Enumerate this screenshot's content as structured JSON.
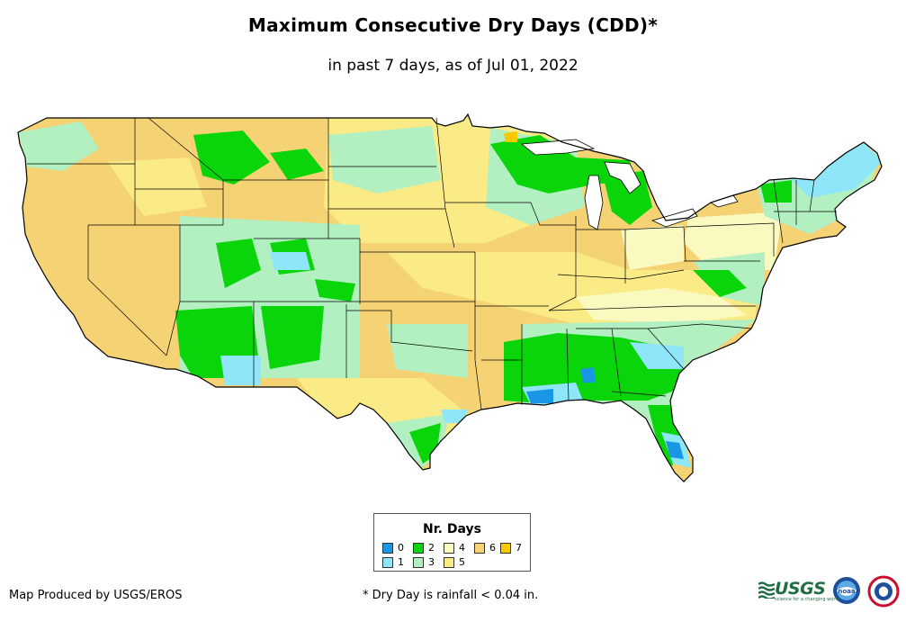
{
  "title": "Maximum Consecutive Dry Days (CDD)*",
  "subtitle": "in past 7 days, as of Jul 01, 2022",
  "legend": {
    "title": "Nr. Days",
    "items": [
      {
        "label": "0",
        "color": "#1996e6"
      },
      {
        "label": "1",
        "color": "#8ee6f8"
      },
      {
        "label": "2",
        "color": "#0ad40a"
      },
      {
        "label": "3",
        "color": "#b2f0c2"
      },
      {
        "label": "4",
        "color": "#fafac0"
      },
      {
        "label": "5",
        "color": "#faeb87"
      },
      {
        "label": "6",
        "color": "#f5d273"
      },
      {
        "label": "7",
        "color": "#f8c800"
      }
    ]
  },
  "credit": "Map Produced by USGS/EROS",
  "footnote": "* Dry Day is rainfall < 0.04 in.",
  "logos": {
    "usgs_text": "USGS",
    "usgs_tagline": "science for a changing world",
    "noaa_text": "noaa"
  }
}
